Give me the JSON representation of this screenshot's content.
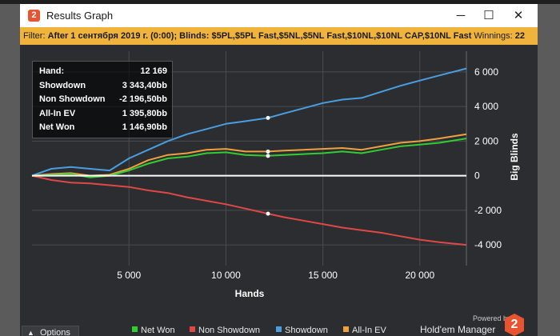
{
  "window": {
    "title": "Results Graph",
    "app_icon_glyph": "2",
    "controls": {
      "minimize": "─",
      "maximize": "☐",
      "close": "✕"
    }
  },
  "filter": {
    "label": "Filter:",
    "text": "After 1 сентября 2019 г. (0:00); Blinds: $5PL,$5PL Fast,$5NL,$5NL Fast,$10NL,$10NL CAP,$10NL Fast",
    "winnings_label": "Winnings:",
    "winnings_value": "22",
    "color": "#f0b43c"
  },
  "tooltip": {
    "rows": [
      {
        "label": "Hand:",
        "value": "12 169"
      },
      {
        "label": "Showdown",
        "value": "3 343,40bb"
      },
      {
        "label": "Non Showdown",
        "value": "-2 196,50bb"
      },
      {
        "label": "All-In EV",
        "value": "1 395,80bb"
      },
      {
        "label": "Net Won",
        "value": "1 146,90bb"
      }
    ]
  },
  "options_label": "Options",
  "powered_by": "Powered by",
  "brand": "Hold'em Manager",
  "brand_logo_glyph": "2",
  "chart_data": {
    "type": "line",
    "xlabel": "Hands",
    "ylabel": "Big Blinds",
    "xlim": [
      0,
      22400
    ],
    "ylim": [
      -5200,
      7200
    ],
    "x_ticks": [
      5000,
      10000,
      15000,
      20000
    ],
    "x_tick_labels": [
      "5 000",
      "10 000",
      "15 000",
      "20 000"
    ],
    "y_ticks": [
      -4000,
      -2000,
      0,
      2000,
      4000,
      6000
    ],
    "y_tick_labels": [
      "-4 000",
      "-2 000",
      "0",
      "2 000",
      "4 000",
      "6 000"
    ],
    "grid": true,
    "legend_position": "bottom",
    "hover_x": 12169,
    "series": [
      {
        "name": "Net Won",
        "color": "#33cc33",
        "x": [
          0,
          1000,
          2000,
          3000,
          4000,
          5000,
          6000,
          7000,
          8000,
          9000,
          10000,
          11000,
          12169,
          13000,
          14000,
          15000,
          16000,
          17000,
          18000,
          19000,
          20000,
          21000,
          22400
        ],
        "values": [
          0,
          50,
          100,
          -100,
          0,
          300,
          700,
          1000,
          1100,
          1300,
          1350,
          1200,
          1147,
          1200,
          1250,
          1300,
          1400,
          1300,
          1500,
          1700,
          1800,
          1900,
          2150
        ]
      },
      {
        "name": "Non Showdown",
        "color": "#e04848",
        "x": [
          0,
          1000,
          2000,
          3000,
          4000,
          5000,
          6000,
          7000,
          8000,
          9000,
          10000,
          11000,
          12169,
          13000,
          14000,
          15000,
          16000,
          17000,
          18000,
          19000,
          20000,
          21000,
          22400
        ],
        "values": [
          0,
          -250,
          -400,
          -450,
          -550,
          -650,
          -850,
          -1000,
          -1250,
          -1450,
          -1650,
          -1900,
          -2197,
          -2400,
          -2600,
          -2800,
          -3000,
          -3150,
          -3300,
          -3500,
          -3700,
          -3850,
          -4000
        ]
      },
      {
        "name": "Showdown",
        "color": "#4a9ee0",
        "x": [
          0,
          1000,
          2000,
          3000,
          4000,
          5000,
          6000,
          7000,
          8000,
          9000,
          10000,
          11000,
          12169,
          13000,
          14000,
          15000,
          16000,
          17000,
          18000,
          19000,
          20000,
          21000,
          22400
        ],
        "values": [
          0,
          400,
          500,
          400,
          300,
          1000,
          1500,
          2000,
          2400,
          2700,
          3000,
          3150,
          3343,
          3600,
          3900,
          4200,
          4400,
          4500,
          4850,
          5200,
          5500,
          5800,
          6200
        ]
      },
      {
        "name": "All-In EV",
        "color": "#f0a040",
        "x": [
          0,
          1000,
          2000,
          3000,
          4000,
          5000,
          6000,
          7000,
          8000,
          9000,
          10000,
          11000,
          12169,
          13000,
          14000,
          15000,
          16000,
          17000,
          18000,
          19000,
          20000,
          21000,
          22400
        ],
        "values": [
          0,
          100,
          150,
          0,
          50,
          400,
          900,
          1200,
          1300,
          1500,
          1550,
          1400,
          1396,
          1450,
          1500,
          1550,
          1600,
          1500,
          1700,
          1900,
          2000,
          2150,
          2400
        ]
      }
    ]
  }
}
